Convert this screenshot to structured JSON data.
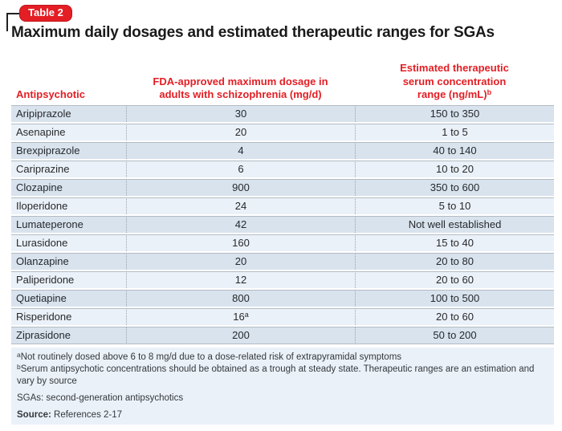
{
  "badge": {
    "label": "Table 2"
  },
  "title": "Maximum daily dosages and estimated therapeutic ranges for SGAs",
  "colors": {
    "accent_red": "#e31e24",
    "row_odd": "#d8e3ee",
    "row_even": "#ebf1f8",
    "footer_panel": "#ebf1f8",
    "row_divider": "#b2bbc3",
    "column_divider_dotted": "#99a3ac",
    "title_text": "#1a1a1a"
  },
  "table": {
    "headers": {
      "col1": "Antipsychotic",
      "col2_line1": "FDA-approved maximum dosage in",
      "col2_line2": "adults with schizophrenia (mg/d)",
      "col3_line1": "Estimated therapeutic",
      "col3_line2": "serum concentration",
      "col3_line3": "range (ng/mL)",
      "col3_sup": "b"
    },
    "rows": [
      {
        "drug": "Aripiprazole",
        "dose": "30",
        "range": "150 to 350"
      },
      {
        "drug": "Asenapine",
        "dose": "20",
        "range": "1 to 5"
      },
      {
        "drug": "Brexpiprazole",
        "dose": "4",
        "range": "40 to 140"
      },
      {
        "drug": "Cariprazine",
        "dose": "6",
        "range": "10 to 20"
      },
      {
        "drug": "Clozapine",
        "dose": "900",
        "range": "350 to 600"
      },
      {
        "drug": "Iloperidone",
        "dose": "24",
        "range": "5 to 10"
      },
      {
        "drug": "Lumateperone",
        "dose": "42",
        "range": "Not well established"
      },
      {
        "drug": "Lurasidone",
        "dose": "160",
        "range": "15 to 40"
      },
      {
        "drug": "Olanzapine",
        "dose": "20",
        "range": "20 to 80"
      },
      {
        "drug": "Paliperidone",
        "dose": "12",
        "range": "20 to 60"
      },
      {
        "drug": "Quetiapine",
        "dose": "800",
        "range": "100 to 500"
      },
      {
        "drug": "Risperidone",
        "dose": "16",
        "dose_sup": "a",
        "range": "20 to 60"
      },
      {
        "drug": "Ziprasidone",
        "dose": "200",
        "range": "50 to 200"
      }
    ]
  },
  "footnotes": [
    {
      "sup": "a",
      "text": "Not routinely dosed above 6 to 8 mg/d due to a dose-related risk of extrapyramidal symptoms"
    },
    {
      "sup": "b",
      "text": "Serum antipsychotic concentrations should be obtained as a trough at steady state. Therapeutic ranges are an estimation and vary by source"
    }
  ],
  "abbreviation": "SGAs: second-generation antipsychotics",
  "source": {
    "label": "Source:",
    "text": " References 2-17"
  }
}
